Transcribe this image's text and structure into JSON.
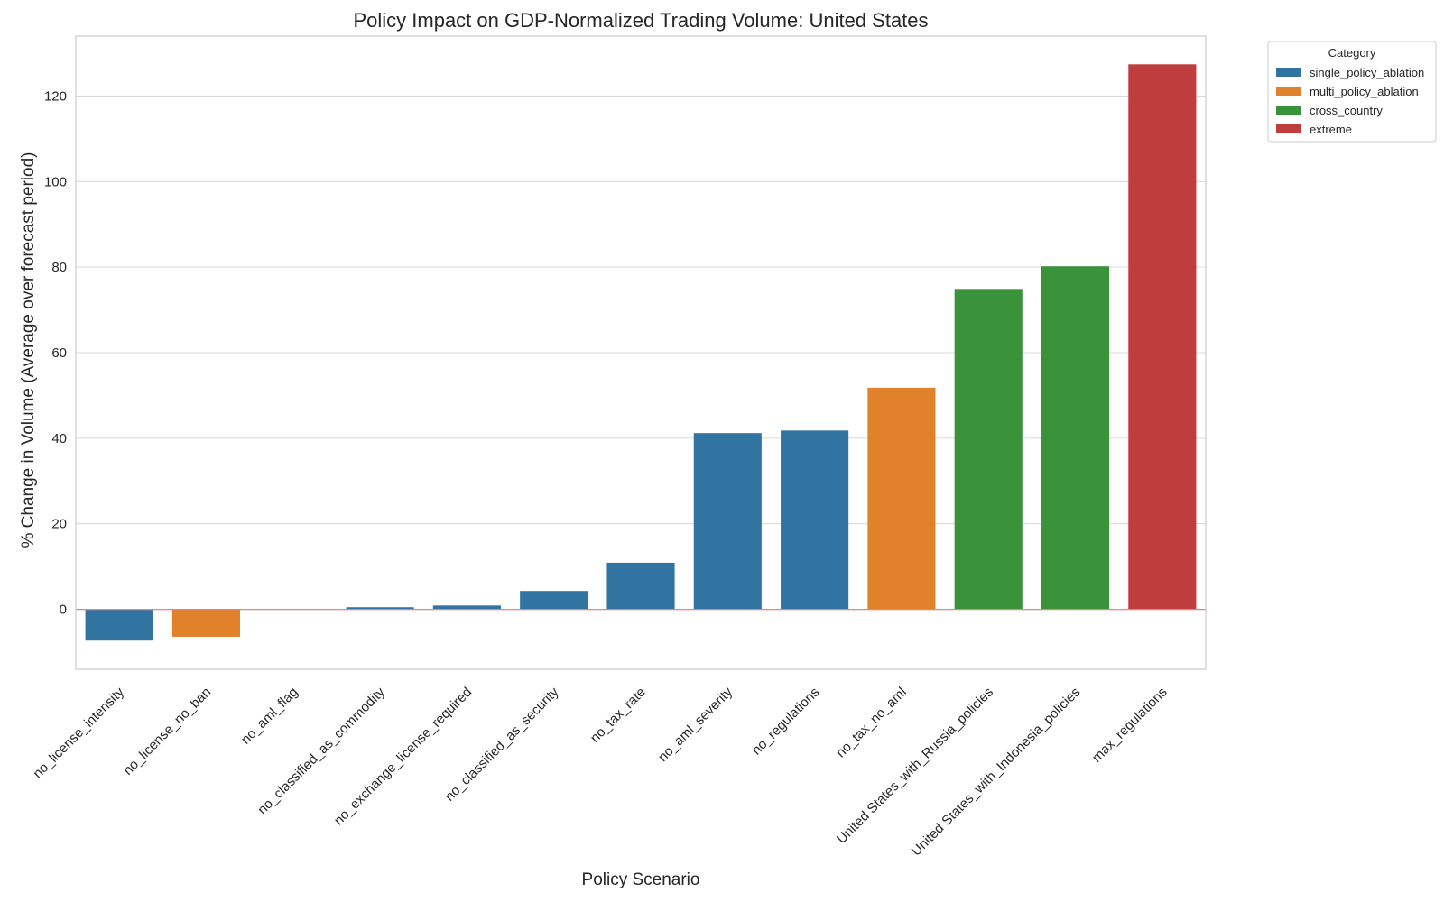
{
  "chart_data": {
    "type": "bar",
    "title": "Policy Impact on GDP-Normalized Trading Volume: United States",
    "xlabel": "Policy Scenario",
    "ylabel": "% Change in Volume (Average over forecast period)",
    "ylim": [
      -14,
      134
    ],
    "yticks": [
      0,
      20,
      40,
      60,
      80,
      100,
      120
    ],
    "grid": true,
    "zero_line_color": "#f08080",
    "categories": [
      "no_license_intensity",
      "no_license_no_ban",
      "no_aml_flag",
      "no_classified_as_commodity",
      "no_exchange_license_required",
      "no_classified_as_security",
      "no_tax_rate",
      "no_aml_severity",
      "no_regulations",
      "no_tax_no_aml",
      "United States_with_Russia_policies",
      "United States_with_Indonesia_policies",
      "max_regulations"
    ],
    "values": [
      -7.3,
      -6.4,
      0.1,
      0.5,
      0.9,
      4.3,
      10.9,
      41.2,
      41.8,
      51.8,
      74.9,
      80.2,
      127.4
    ],
    "bar_category": [
      "single_policy_ablation",
      "multi_policy_ablation",
      "single_policy_ablation",
      "single_policy_ablation",
      "single_policy_ablation",
      "single_policy_ablation",
      "single_policy_ablation",
      "single_policy_ablation",
      "single_policy_ablation",
      "multi_policy_ablation",
      "cross_country",
      "cross_country",
      "extreme"
    ],
    "legend": {
      "title": "Category",
      "placement": "outside-top-right",
      "entries": [
        {
          "name": "single_policy_ablation",
          "color": "#3274a1"
        },
        {
          "name": "multi_policy_ablation",
          "color": "#e1812c"
        },
        {
          "name": "cross_country",
          "color": "#3a923a"
        },
        {
          "name": "extreme",
          "color": "#c03d3e"
        }
      ]
    }
  }
}
